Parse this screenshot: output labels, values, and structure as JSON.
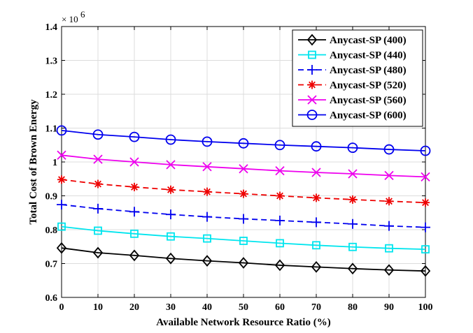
{
  "chart_data": {
    "type": "line",
    "title": "",
    "xlabel": "Available Network Resource Ratio (%)",
    "ylabel": "Total Cost of Brown Energy",
    "y_multiplier_label": "× 10",
    "y_multiplier_exponent": "6",
    "xlim": [
      0,
      100
    ],
    "ylim": [
      0.6,
      1.4
    ],
    "x_ticks": [
      0,
      10,
      20,
      30,
      40,
      50,
      60,
      70,
      80,
      90,
      100
    ],
    "y_ticks": [
      0.6,
      0.7,
      0.8,
      0.9,
      1.0,
      1.1,
      1.2,
      1.3,
      1.4
    ],
    "x_tick_labels": [
      "0",
      "10",
      "20",
      "30",
      "40",
      "50",
      "60",
      "70",
      "80",
      "90",
      "100"
    ],
    "y_tick_labels": [
      "0.6",
      "0.7",
      "0.8",
      "0.9",
      "1",
      "1.1",
      "1.2",
      "1.3",
      "1.4"
    ],
    "grid": true,
    "legend_position": "top-right",
    "x": [
      0,
      10,
      20,
      30,
      40,
      50,
      60,
      70,
      80,
      90,
      100
    ],
    "series": [
      {
        "name": "Anycast-SP (400)",
        "color": "#000000",
        "marker": "diamond",
        "dash": "solid",
        "values": [
          0.746,
          0.732,
          0.724,
          0.715,
          0.708,
          0.702,
          0.695,
          0.69,
          0.685,
          0.681,
          0.678
        ]
      },
      {
        "name": "Anycast-SP (440)",
        "color": "#00e5ee",
        "marker": "square",
        "dash": "solid",
        "values": [
          0.809,
          0.797,
          0.788,
          0.78,
          0.774,
          0.767,
          0.76,
          0.754,
          0.749,
          0.745,
          0.742
        ]
      },
      {
        "name": "Anycast-SP (480)",
        "color": "#0000ee",
        "marker": "plus",
        "dash": "dashed",
        "values": [
          0.874,
          0.862,
          0.853,
          0.845,
          0.838,
          0.832,
          0.827,
          0.822,
          0.817,
          0.811,
          0.807
        ]
      },
      {
        "name": "Anycast-SP (520)",
        "color": "#ee0000",
        "marker": "asterisk",
        "dash": "dashed",
        "values": [
          0.948,
          0.935,
          0.926,
          0.918,
          0.912,
          0.906,
          0.9,
          0.894,
          0.889,
          0.884,
          0.88
        ]
      },
      {
        "name": "Anycast-SP (560)",
        "color": "#ee00ee",
        "marker": "x",
        "dash": "solid",
        "values": [
          1.02,
          1.008,
          1.0,
          0.992,
          0.986,
          0.98,
          0.974,
          0.969,
          0.965,
          0.96,
          0.956
        ]
      },
      {
        "name": "Anycast-SP (600)",
        "color": "#0000ee",
        "marker": "circle",
        "dash": "solid",
        "values": [
          1.093,
          1.081,
          1.074,
          1.066,
          1.06,
          1.055,
          1.05,
          1.046,
          1.042,
          1.037,
          1.033
        ]
      }
    ]
  }
}
